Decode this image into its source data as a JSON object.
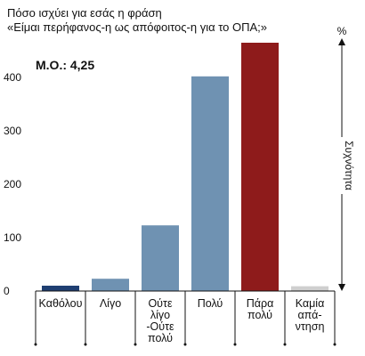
{
  "chart_data": {
    "type": "bar",
    "title_lines": [
      "Πόσο ισχύει για εσάς η φράση",
      "«Είμαι περήφανος-η ως απόφοιτος-η για το ΟΠΑ;»"
    ],
    "mean_label": "Μ.Ο.: 4,25",
    "y_unit": "%",
    "right_axis_label": "Συχνότητα",
    "ylim": [
      0,
      470
    ],
    "yticks": [
      0,
      100,
      200,
      300,
      400
    ],
    "grid": false,
    "categories": [
      [
        "Καθόλου"
      ],
      [
        "Λίγο"
      ],
      [
        "Ούτε",
        "λίγο",
        "-Ούτε",
        "πολύ"
      ],
      [
        "Πολύ"
      ],
      [
        "Πάρα",
        "πολύ"
      ],
      [
        "Καμία",
        "απά-",
        "ντηση"
      ]
    ],
    "values": [
      10,
      23,
      123,
      402,
      465,
      9
    ],
    "colors": [
      "#1f3f72",
      "#6f92b2",
      "#6f92b2",
      "#6f92b2",
      "#8e1b1b",
      "#cfcfcf"
    ]
  }
}
